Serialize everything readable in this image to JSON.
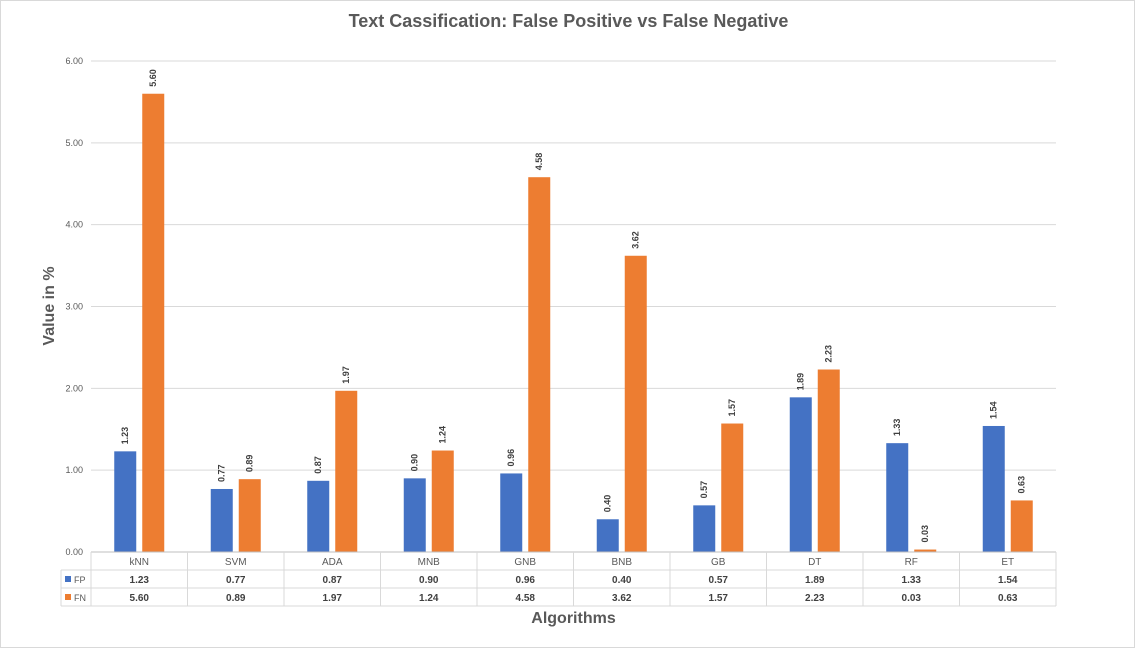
{
  "chart_data": {
    "type": "bar",
    "title": "Text Cassification: False Positive vs False Negative",
    "ylabel": "Value in %",
    "xlabel": "Algorithms",
    "ylim": [
      0,
      6
    ],
    "yticks": [
      "0.00",
      "1.00",
      "2.00",
      "3.00",
      "4.00",
      "5.00",
      "6.00"
    ],
    "grid": true,
    "legend": "data-table",
    "categories": [
      "kNN",
      "SVM",
      "ADA",
      "MNB",
      "GNB",
      "BNB",
      "GB",
      "DT",
      "RF",
      "ET"
    ],
    "series": [
      {
        "name": "FP",
        "color": "#4472c4",
        "values": [
          1.23,
          0.77,
          0.87,
          0.9,
          0.96,
          0.4,
          0.57,
          1.89,
          1.33,
          1.54
        ],
        "labels": [
          "1.23",
          "0.77",
          "0.87",
          "0.90",
          "0.96",
          "0.40",
          "0.57",
          "1.89",
          "1.33",
          "1.54"
        ]
      },
      {
        "name": "FN",
        "color": "#ed7d31",
        "values": [
          5.6,
          0.89,
          1.97,
          1.24,
          4.58,
          3.62,
          1.57,
          2.23,
          0.03,
          0.63
        ],
        "labels": [
          "5.60",
          "0.89",
          "1.97",
          "1.24",
          "4.58",
          "3.62",
          "1.57",
          "2.23",
          "0.03",
          "0.63"
        ]
      }
    ]
  }
}
